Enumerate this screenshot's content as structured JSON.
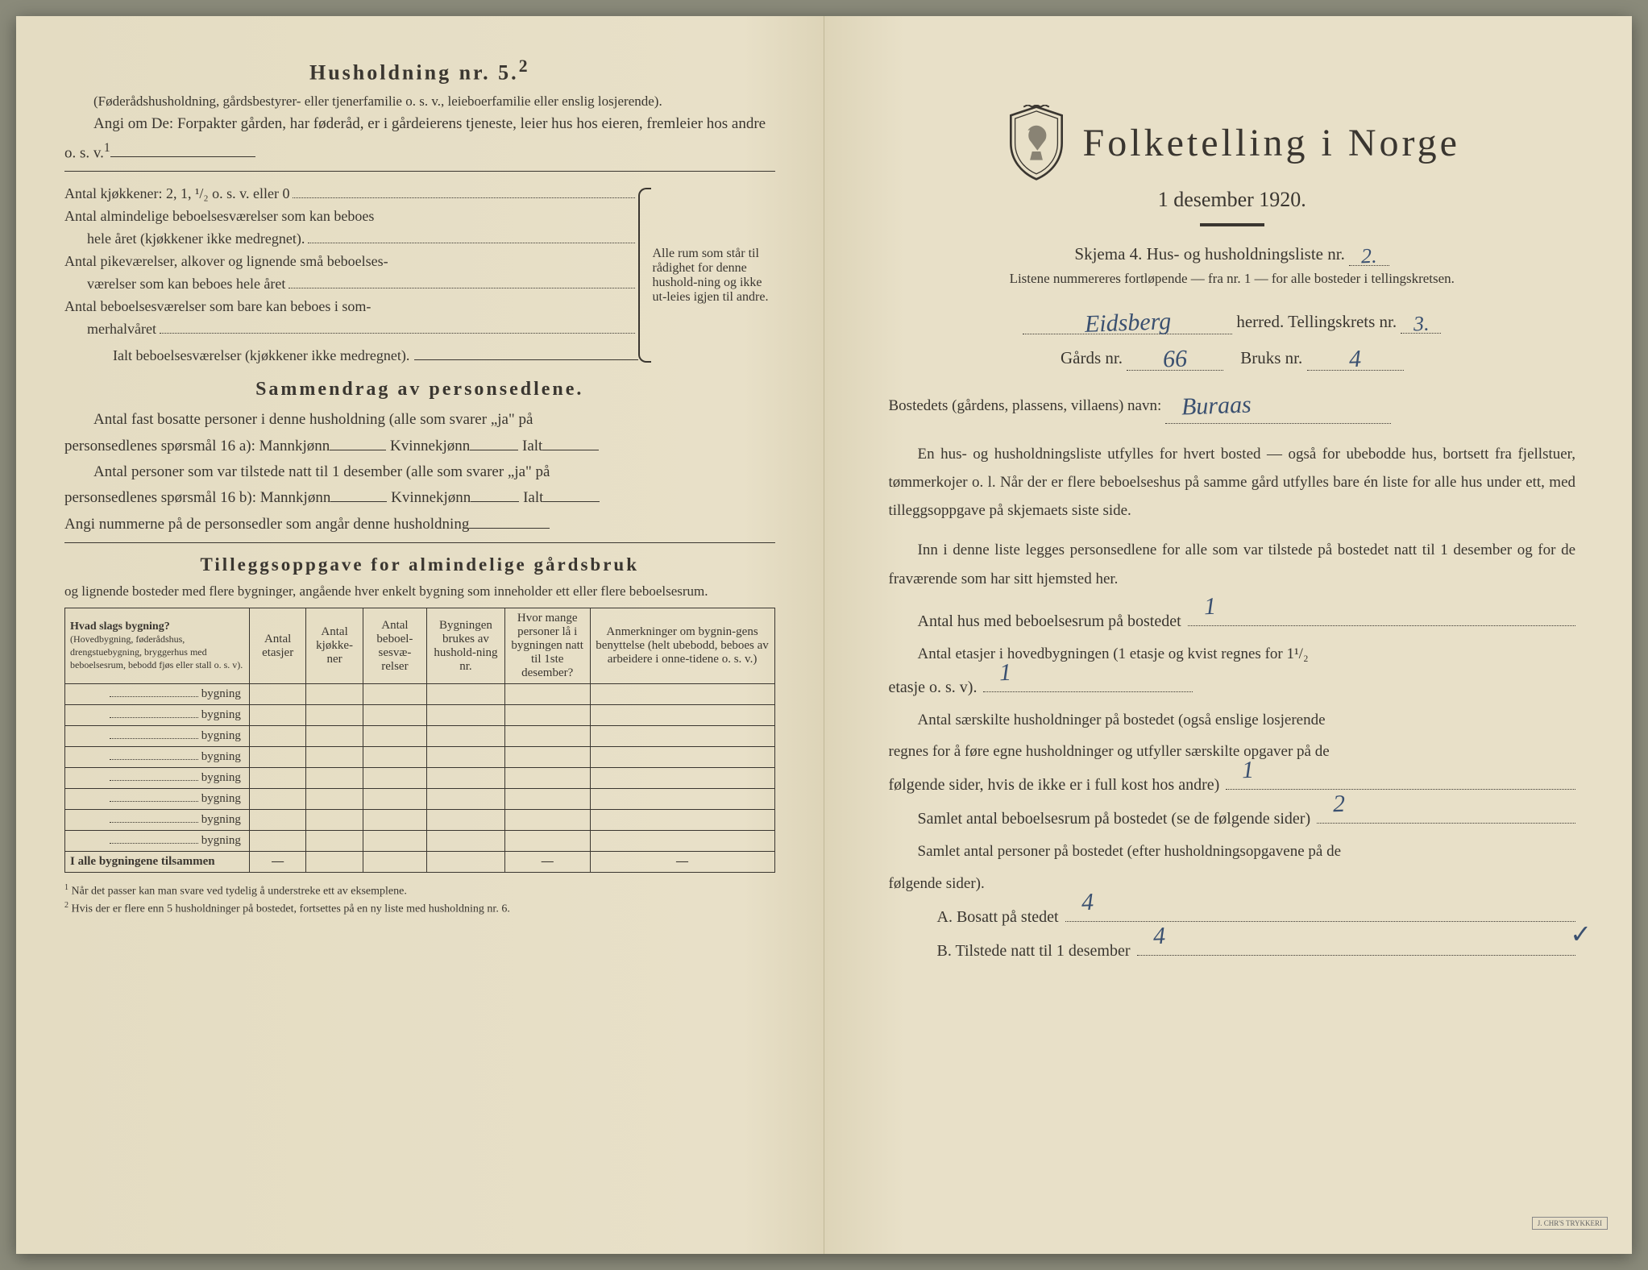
{
  "colors": {
    "paper": "#e8e0c8",
    "ink": "#3a3630",
    "handwriting": "#3a5070"
  },
  "left": {
    "h5_title": "Husholdning nr. 5.",
    "h5_sup": "2",
    "h5_note": "(Føderådshusholdning, gårdsbestyrer- eller tjenerfamilie o. s. v., leieboerfamilie eller enslig losjerende).",
    "h5_instr": "Angi om De: Forpakter gården, har føderåd, er i gårdeierens tjeneste, leier hus hos eieren, fremleier hos andre o. s. v.",
    "h5_instr_sup": "1",
    "kitchens": "Antal kjøkkener: 2, 1, ¹/₂ o. s. v. eller 0",
    "rooms1a": "Antal almindelige beboelsesværelser som kan beboes",
    "rooms1b": "hele året (kjøkkener ikke medregnet).",
    "rooms2a": "Antal pikeværelser, alkover og lignende små beboelses-",
    "rooms2b": "værelser som kan beboes hele året",
    "rooms3a": "Antal beboelsesværelser som bare kan beboes i som-",
    "rooms3b": "merhalvåret",
    "rooms_total": "Ialt beboelsesværelser (kjøkkener ikke medregnet).",
    "brace_text": "Alle rum som står til rådighet for denne hushold-ning og ikke ut-leies igjen til andre.",
    "samm_title": "Sammendrag av personsedlene.",
    "samm_p1a": "Antal fast bosatte personer i denne husholdning (alle som svarer „ja\" på",
    "samm_p1b": "personsedlenes spørsmål 16 a): Mannkjønn",
    "samm_kv": "Kvinnekjønn",
    "samm_ialt": "Ialt",
    "samm_p2a": "Antal personer som var tilstede natt til 1 desember (alle som svarer „ja\" på",
    "samm_p2b": "personsedlenes spørsmål 16 b): Mannkjønn",
    "samm_p3": "Angi nummerne på de personsedler som angår denne husholdning",
    "till_title": "Tilleggsoppgave for almindelige gårdsbruk",
    "till_sub": "og lignende bosteder med flere bygninger, angående hver enkelt bygning som inneholder ett eller flere beboelsesrum.",
    "table": {
      "headers": [
        "Hvad slags bygning?\n(Hovedbygning, føderådshus, drengstuebygning, bryggerhus med beboelsesrum, bebodd fjøs eller stall o. s. v).",
        "Antal etasjer",
        "Antal kjøkke-ner",
        "Antal beboel-sesvæ-relser",
        "Bygningen brukes av hushold-ning nr.",
        "Hvor mange personer lå i bygningen natt til 1ste desember?",
        "Anmerkninger om bygnin-gens benyttelse (helt ubebodd, beboes av arbeidere i onne-tidene o. s. v.)"
      ],
      "row_label": "bygning",
      "row_count": 8,
      "total_label": "I alle bygningene tilsammen",
      "dash": "—"
    },
    "footnote1": "Når det passer kan man svare ved tydelig å understreke ett av eksemplene.",
    "footnote2": "Hvis der er flere enn 5 husholdninger på bostedet, fortsettes på en ny liste med husholdning nr. 6."
  },
  "right": {
    "main_title": "Folketelling i Norge",
    "subtitle": "1 desember 1920.",
    "skjema": "Skjema 4.   Hus- og husholdningsliste nr.",
    "skjema_val": "2.",
    "listnote": "Listene nummereres fortløpende — fra nr. 1 — for alle bosteder i tellingskretsen.",
    "herred_val": "Eidsberg",
    "herred_lbl": "herred.   Tellingskrets nr.",
    "krets_val": "3.",
    "gards_lbl": "Gårds nr.",
    "gards_val": "66",
    "bruks_lbl": "Bruks nr.",
    "bruks_val": "4",
    "bosted_lbl": "Bostedets (gårdens, plassens, villaens) navn:",
    "bosted_val": "Buraas",
    "para1": "En hus- og husholdningsliste utfylles for hvert bosted — også for ubebodde hus, bortsett fra fjellstuer, tømmerkojer o. l.  Når der er flere beboelseshus på samme gård utfylles bare én liste for alle hus under ett, med tilleggsoppgave på skjemaets siste side.",
    "para2": "Inn i denne liste legges personsedlene for alle som var tilstede på bostedet natt til 1 desember og for de fraværende som har sitt hjemsted her.",
    "q1": "Antal hus med beboelsesrum på bostedet",
    "q1_val": "1",
    "q2a": "Antal etasjer i hovedbygningen (1 etasje og kvist regnes for 1¹/₂",
    "q2b": "etasje o. s. v).",
    "q2_val": "1",
    "q3a": "Antal særskilte husholdninger på bostedet (også enslige losjerende",
    "q3b": "regnes for å føre egne husholdninger og utfyller særskilte opgaver på de",
    "q3c": "følgende sider, hvis de ikke er i full kost hos andre)",
    "q3_val": "1",
    "q4": "Samlet antal beboelsesrum på bostedet (se de følgende sider)",
    "q4_val": "2",
    "q5a": "Samlet antal personer på bostedet (efter husholdningsopgavene på de",
    "q5b": "følgende sider).",
    "qA": "A.  Bosatt på stedet",
    "qA_val": "4",
    "qB": "B.  Tilstede natt til 1 desember",
    "qB_val": "4",
    "check": "✓"
  }
}
